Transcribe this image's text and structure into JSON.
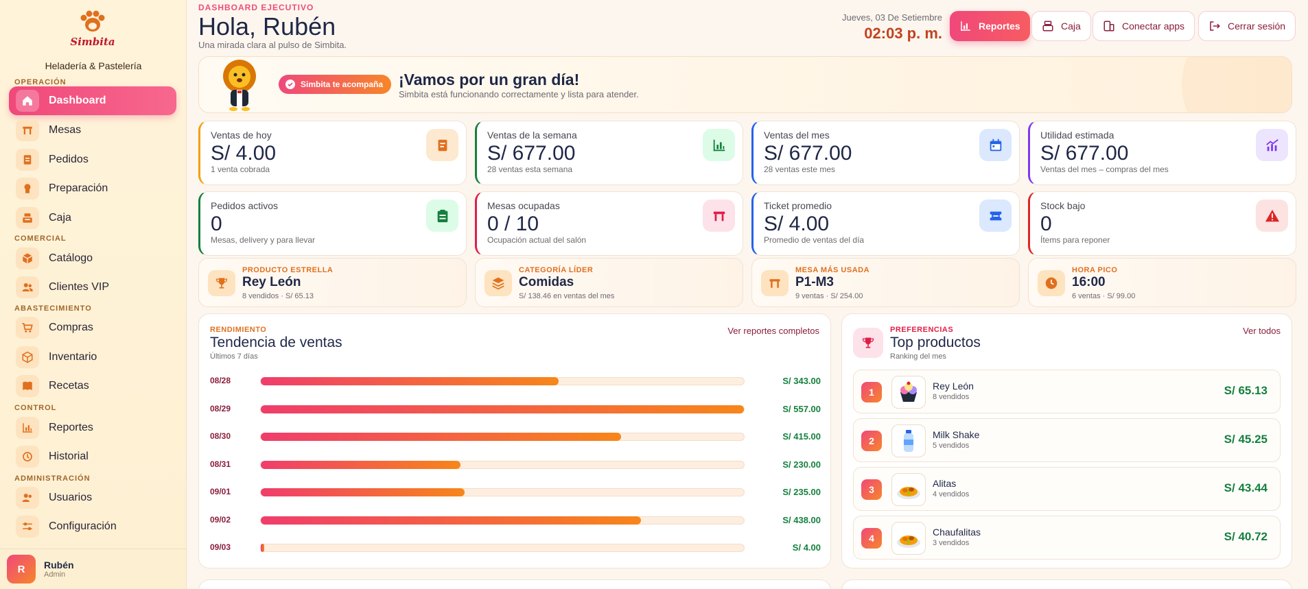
{
  "sidebar": {
    "logo_text": "Simbita",
    "brand_sub": "Heladería & Pastelería",
    "sections": {
      "operacion": "OPERACIÓN",
      "comercial": "COMERCIAL",
      "abastecimiento": "ABASTECIMIENTO",
      "control": "CONTROL",
      "administracion": "ADMINISTRACIÓN"
    },
    "items": {
      "dashboard": "Dashboard",
      "mesas": "Mesas",
      "pedidos": "Pedidos",
      "preparacion": "Preparación",
      "caja": "Caja",
      "catalogo": "Catálogo",
      "clientes": "Clientes VIP",
      "compras": "Compras",
      "inventario": "Inventario",
      "recetas": "Recetas",
      "reportes": "Reportes",
      "historial": "Historial",
      "usuarios": "Usuarios",
      "configuracion": "Configuración"
    },
    "user": {
      "initial": "R",
      "name": "Rubén",
      "role": "Admin"
    }
  },
  "header": {
    "eyebrow": "DASHBOARD EJECUTIVO",
    "greeting": "Hola, Rubén",
    "subtitle": "Una mirada clara al pulso de Simbita.",
    "date": "Jueves, 03 De Setiembre",
    "time": "02:03 p. m.",
    "buttons": {
      "reportes": "Reportes",
      "caja": "Caja",
      "conectar": "Conectar apps",
      "cerrar": "Cerrar sesión"
    }
  },
  "banner": {
    "badge": "Simbita te acompaña",
    "title": "¡Vamos por un gran día!",
    "subtitle": "Simbita está funcionando correctamente y lista para atender."
  },
  "kpis": [
    {
      "label": "Ventas de hoy",
      "value": "S/ 4.00",
      "sub": "1 venta cobrada",
      "accent": "#f59e0b",
      "icon": "receipt-icon"
    },
    {
      "label": "Ventas de la semana",
      "value": "S/ 677.00",
      "sub": "28 ventas esta semana",
      "accent": "#15803d",
      "icon": "bar-chart-icon"
    },
    {
      "label": "Ventas del mes",
      "value": "S/ 677.00",
      "sub": "28 ventas este mes",
      "accent": "#2563eb",
      "icon": "calendar-icon"
    },
    {
      "label": "Utilidad estimada",
      "value": "S/ 677.00",
      "sub": "Ventas del mes – compras del mes",
      "accent": "#7c3aed",
      "icon": "trend-chart-icon"
    },
    {
      "label": "Pedidos activos",
      "value": "0",
      "sub": "Mesas, delivery y para llevar",
      "accent": "#15803d",
      "icon": "clipboard-icon"
    },
    {
      "label": "Mesas ocupadas",
      "value": "0 / 10",
      "sub": "Ocupación actual del salón",
      "accent": "#e11d48",
      "icon": "table-icon"
    },
    {
      "label": "Ticket promedio",
      "value": "S/ 4.00",
      "sub": "Promedio de ventas del día",
      "accent": "#2563eb",
      "icon": "ticket-icon"
    },
    {
      "label": "Stock bajo",
      "value": "0",
      "sub": "Ítems para reponer",
      "accent": "#dc2626",
      "icon": "warning-icon"
    }
  ],
  "highlights": [
    {
      "label": "PRODUCTO ESTRELLA",
      "value": "Rey León",
      "sub": "8 vendidos · S/ 65.13",
      "icon": "trophy-icon"
    },
    {
      "label": "CATEGORÍA LÍDER",
      "value": "Comidas",
      "sub": "S/ 138.46 en ventas del mes",
      "icon": "layers-icon"
    },
    {
      "label": "MESA MÁS USADA",
      "value": "P1-M3",
      "sub": "9 ventas · S/ 254.00",
      "icon": "table-icon"
    },
    {
      "label": "HORA PICO",
      "value": "16:00",
      "sub": "6 ventas · S/ 99.00",
      "icon": "clock-icon"
    }
  ],
  "trend": {
    "eyebrow": "RENDIMIENTO",
    "title": "Tendencia de ventas",
    "sub": "Últimos 7 días",
    "link": "Ver reportes completos",
    "rows": [
      {
        "date": "08/28",
        "value": 343,
        "label": "S/ 343.00"
      },
      {
        "date": "08/29",
        "value": 557,
        "label": "S/ 557.00"
      },
      {
        "date": "08/30",
        "value": 415,
        "label": "S/ 415.00"
      },
      {
        "date": "08/31",
        "value": 230,
        "label": "S/ 230.00"
      },
      {
        "date": "09/01",
        "value": 235,
        "label": "S/ 235.00"
      },
      {
        "date": "09/02",
        "value": 438,
        "label": "S/ 438.00"
      },
      {
        "date": "09/03",
        "value": 4,
        "label": "S/ 4.00"
      }
    ],
    "max": 557
  },
  "top": {
    "eyebrow": "PREFERENCIAS",
    "title": "Top productos",
    "sub": "Ranking del mes",
    "link": "Ver todos",
    "items": [
      {
        "rank": "1",
        "name": "Rey León",
        "sub": "8 vendidos",
        "price": "S/ 65.13",
        "icon": "ice-cream-icon"
      },
      {
        "rank": "2",
        "name": "Milk Shake",
        "sub": "5 vendidos",
        "price": "S/ 45.25",
        "icon": "bottle-icon"
      },
      {
        "rank": "3",
        "name": "Alitas",
        "sub": "4 vendidos",
        "price": "S/ 43.44",
        "icon": "dish-icon"
      },
      {
        "rank": "4",
        "name": "Chaufalitas",
        "sub": "3 vendidos",
        "price": "S/ 40.72",
        "icon": "dish-icon"
      }
    ]
  }
}
